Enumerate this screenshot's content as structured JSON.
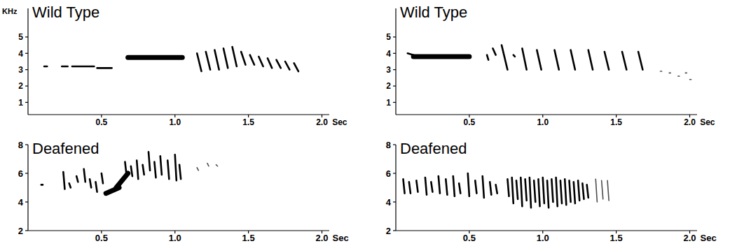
{
  "chart_data": [
    {
      "type": "spectrogram",
      "title": "Wild Type",
      "y_label": "KHz",
      "x_label": "Sec",
      "color": "#000000",
      "xlim": [
        0,
        2.05
      ],
      "ylim": [
        0.25,
        6.75
      ],
      "xticks": [
        0.5,
        {
          "value": 1,
          "label": "1.0"
        },
        1.5,
        {
          "value": 2,
          "label": "2.0"
        }
      ],
      "yticks": [
        1,
        2,
        3,
        4,
        5
      ],
      "notes": [
        {
          "x": [
            0.11,
            0.13
          ],
          "y": [
            3.2,
            3.2
          ]
        },
        {
          "x": [
            0.23,
            0.27
          ],
          "y": [
            3.2,
            3.2
          ]
        },
        {
          "x": [
            0.3,
            0.45
          ],
          "y": [
            3.2,
            3.2
          ]
        },
        {
          "x": [
            0.47,
            0.57
          ],
          "y": [
            3.1,
            3.1
          ]
        },
        {
          "x": [
            0.68,
            1.05
          ],
          "y": [
            3.75,
            3.75
          ],
          "line_style": "thick"
        },
        {
          "x": [
            1.15,
            1.18
          ],
          "y": [
            4.0,
            2.9
          ]
        },
        {
          "x": [
            1.21,
            1.24
          ],
          "y": [
            4.1,
            3.0
          ]
        },
        {
          "x": [
            1.27,
            1.3
          ],
          "y": [
            4.2,
            3.0
          ]
        },
        {
          "x": [
            1.33,
            1.36
          ],
          "y": [
            4.3,
            3.1
          ]
        },
        {
          "x": [
            1.39,
            1.42
          ],
          "y": [
            4.4,
            3.2
          ]
        },
        {
          "x": [
            1.45,
            1.48
          ],
          "y": [
            4.1,
            3.3
          ]
        },
        {
          "x": [
            1.51,
            1.54
          ],
          "y": [
            3.9,
            3.3
          ]
        },
        {
          "x": [
            1.57,
            1.6
          ],
          "y": [
            3.8,
            3.2
          ]
        },
        {
          "x": [
            1.63,
            1.66
          ],
          "y": [
            3.7,
            3.1
          ]
        },
        {
          "x": [
            1.69,
            1.72
          ],
          "y": [
            3.6,
            3.1
          ]
        },
        {
          "x": [
            1.75,
            1.78
          ],
          "y": [
            3.5,
            3.0
          ]
        },
        {
          "x": [
            1.81,
            1.84
          ],
          "y": [
            3.4,
            2.9
          ]
        }
      ]
    },
    {
      "type": "spectrogram",
      "title": "Wild Type",
      "x_label": "Sec",
      "color": "#000000",
      "xlim": [
        0,
        2.05
      ],
      "ylim": [
        0.25,
        6.75
      ],
      "xticks": [
        0.5,
        {
          "value": 1,
          "label": "1.0"
        },
        1.5,
        {
          "value": 2,
          "label": "2.0"
        }
      ],
      "yticks": [
        1,
        2,
        3,
        4,
        5
      ],
      "notes": [
        {
          "x": [
            0.08,
            0.12
          ],
          "y": [
            4.0,
            3.9
          ]
        },
        {
          "x": [
            0.12,
            0.5
          ],
          "y": [
            3.8,
            3.8
          ],
          "line_style": "thick"
        },
        {
          "x": [
            0.62,
            0.63
          ],
          "y": [
            3.9,
            3.6
          ]
        },
        {
          "x": [
            0.66,
            0.68
          ],
          "y": [
            4.3,
            3.9
          ]
        },
        {
          "x": [
            0.72,
            0.76
          ],
          "y": [
            4.5,
            3.0
          ]
        },
        {
          "x": [
            0.8,
            0.81
          ],
          "y": [
            3.9,
            3.8
          ]
        },
        {
          "x": [
            0.86,
            0.89
          ],
          "y": [
            4.3,
            3.0
          ]
        },
        {
          "x": [
            0.96,
            0.99
          ],
          "y": [
            4.2,
            3.0
          ]
        },
        {
          "x": [
            1.08,
            1.11
          ],
          "y": [
            4.2,
            3.0
          ]
        },
        {
          "x": [
            1.19,
            1.22
          ],
          "y": [
            4.2,
            3.0
          ]
        },
        {
          "x": [
            1.31,
            1.34
          ],
          "y": [
            4.2,
            3.0
          ]
        },
        {
          "x": [
            1.42,
            1.45
          ],
          "y": [
            4.1,
            3.0
          ]
        },
        {
          "x": [
            1.54,
            1.57
          ],
          "y": [
            4.1,
            3.0
          ]
        },
        {
          "x": [
            1.65,
            1.68
          ],
          "y": [
            4.1,
            3.0
          ]
        },
        {
          "x": [
            1.8,
            1.81
          ],
          "y": [
            2.9,
            2.9
          ],
          "line_style": "faint"
        },
        {
          "x": [
            1.86,
            1.87
          ],
          "y": [
            2.8,
            2.8
          ],
          "line_style": "faint"
        },
        {
          "x": [
            1.92,
            1.93
          ],
          "y": [
            2.6,
            2.6
          ],
          "line_style": "faint"
        },
        {
          "x": [
            1.97,
            1.98
          ],
          "y": [
            2.8,
            2.8
          ],
          "line_style": "faint"
        },
        {
          "x": [
            2.0,
            2.01
          ],
          "y": [
            2.4,
            2.4
          ],
          "line_style": "faint"
        }
      ]
    },
    {
      "type": "spectrogram",
      "title": "Deafened",
      "x_label": "Sec",
      "color": "#000000",
      "xlim": [
        0,
        2.05
      ],
      "ylim": [
        2,
        8
      ],
      "xticks": [
        0.5,
        {
          "value": 1,
          "label": "1.0"
        },
        1.5,
        {
          "value": 2,
          "label": "2.0"
        }
      ],
      "yticks": [
        2,
        4,
        6,
        8
      ],
      "notes": [
        {
          "x": [
            0.09,
            0.1
          ],
          "y": [
            5.2,
            5.2
          ]
        },
        {
          "x": [
            0.24,
            0.25
          ],
          "y": [
            6.1,
            4.9
          ]
        },
        {
          "x": [
            0.28,
            0.29
          ],
          "y": [
            5.3,
            5.0
          ]
        },
        {
          "x": [
            0.33,
            0.34
          ],
          "y": [
            5.8,
            5.4
          ]
        },
        {
          "x": [
            0.38,
            0.39
          ],
          "y": [
            6.3,
            5.4
          ]
        },
        {
          "x": [
            0.42,
            0.43
          ],
          "y": [
            5.6,
            5.0
          ]
        },
        {
          "x": [
            0.46,
            0.47
          ],
          "y": [
            5.4,
            4.7
          ]
        },
        {
          "x": [
            0.5,
            0.51
          ],
          "y": [
            6.0,
            5.3
          ]
        },
        {
          "x": [
            0.53,
            0.62
          ],
          "y": [
            4.6,
            5.0
          ],
          "line_style": "thick"
        },
        {
          "x": [
            0.6,
            0.68
          ],
          "y": [
            5.0,
            6.0
          ],
          "line_style": "thick"
        },
        {
          "x": [
            0.66,
            0.67
          ],
          "y": [
            6.8,
            5.9
          ]
        },
        {
          "x": [
            0.7,
            0.71
          ],
          "y": [
            6.5,
            5.8
          ]
        },
        {
          "x": [
            0.74,
            0.75
          ],
          "y": [
            6.9,
            5.6
          ]
        },
        {
          "x": [
            0.78,
            0.79
          ],
          "y": [
            6.6,
            5.9
          ]
        },
        {
          "x": [
            0.82,
            0.83
          ],
          "y": [
            7.5,
            6.2
          ]
        },
        {
          "x": [
            0.86,
            0.87
          ],
          "y": [
            6.8,
            5.7
          ]
        },
        {
          "x": [
            0.9,
            0.91
          ],
          "y": [
            7.2,
            5.9
          ]
        },
        {
          "x": [
            0.95,
            0.96
          ],
          "y": [
            6.9,
            5.6
          ]
        },
        {
          "x": [
            1.0,
            1.01
          ],
          "y": [
            7.3,
            5.5
          ]
        },
        {
          "x": [
            1.03,
            1.04
          ],
          "y": [
            6.6,
            5.6
          ]
        },
        {
          "x": [
            1.15,
            1.16
          ],
          "y": [
            6.4,
            6.2
          ],
          "line_style": "faint"
        },
        {
          "x": [
            1.22,
            1.23
          ],
          "y": [
            6.7,
            6.5
          ],
          "line_style": "faint"
        },
        {
          "x": [
            1.28,
            1.29
          ],
          "y": [
            6.6,
            6.5
          ],
          "line_style": "faint"
        }
      ]
    },
    {
      "type": "spectrogram",
      "title": "Deafened",
      "x_label": "Sec",
      "color": "#000000",
      "xlim": [
        0,
        2.05
      ],
      "ylim": [
        2,
        8
      ],
      "xticks": [
        0.5,
        {
          "value": 1,
          "label": "1.0"
        },
        1.5,
        {
          "value": 2,
          "label": "2.0"
        }
      ],
      "yticks": [
        2,
        4,
        6,
        8
      ],
      "notes": [
        {
          "x": [
            0.05,
            0.06
          ],
          "y": [
            5.6,
            4.6
          ]
        },
        {
          "x": [
            0.09,
            0.1
          ],
          "y": [
            5.4,
            4.6
          ]
        },
        {
          "x": [
            0.14,
            0.15
          ],
          "y": [
            5.5,
            4.7
          ]
        },
        {
          "x": [
            0.2,
            0.21
          ],
          "y": [
            5.7,
            4.5
          ]
        },
        {
          "x": [
            0.24,
            0.25
          ],
          "y": [
            5.4,
            4.7
          ]
        },
        {
          "x": [
            0.29,
            0.3
          ],
          "y": [
            5.8,
            4.6
          ]
        },
        {
          "x": [
            0.34,
            0.35
          ],
          "y": [
            5.6,
            4.5
          ]
        },
        {
          "x": [
            0.39,
            0.4
          ],
          "y": [
            5.8,
            4.4
          ]
        },
        {
          "x": [
            0.43,
            0.44
          ],
          "y": [
            5.3,
            4.6
          ]
        },
        {
          "x": [
            0.49,
            0.5
          ],
          "y": [
            6.0,
            4.4
          ]
        },
        {
          "x": [
            0.54,
            0.55
          ],
          "y": [
            5.5,
            4.6
          ]
        },
        {
          "x": [
            0.59,
            0.6
          ],
          "y": [
            5.8,
            4.3
          ]
        },
        {
          "x": [
            0.64,
            0.65
          ],
          "y": [
            5.4,
            4.5
          ]
        },
        {
          "x": [
            0.68,
            0.69
          ],
          "y": [
            5.2,
            4.6
          ]
        },
        {
          "x": [
            0.76,
            0.77
          ],
          "y": [
            5.6,
            4.4
          ]
        },
        {
          "x": [
            0.79,
            0.8
          ],
          "y": [
            5.7,
            3.9
          ]
        },
        {
          "x": [
            0.82,
            0.83
          ],
          "y": [
            5.5,
            4.2
          ]
        },
        {
          "x": [
            0.85,
            0.86
          ],
          "y": [
            5.7,
            3.7
          ]
        },
        {
          "x": [
            0.88,
            0.89
          ],
          "y": [
            5.6,
            4.1
          ]
        },
        {
          "x": [
            0.91,
            0.92
          ],
          "y": [
            5.7,
            3.6
          ]
        },
        {
          "x": [
            0.94,
            0.95
          ],
          "y": [
            5.5,
            4.0
          ]
        },
        {
          "x": [
            0.97,
            0.98
          ],
          "y": [
            5.6,
            3.7
          ]
        },
        {
          "x": [
            1.0,
            1.01
          ],
          "y": [
            5.7,
            3.9
          ]
        },
        {
          "x": [
            1.03,
            1.04
          ],
          "y": [
            5.5,
            3.6
          ]
        },
        {
          "x": [
            1.06,
            1.07
          ],
          "y": [
            5.6,
            4.0
          ]
        },
        {
          "x": [
            1.09,
            1.1
          ],
          "y": [
            5.7,
            3.7
          ]
        },
        {
          "x": [
            1.12,
            1.13
          ],
          "y": [
            5.5,
            3.9
          ]
        },
        {
          "x": [
            1.15,
            1.16
          ],
          "y": [
            5.6,
            3.8
          ]
        },
        {
          "x": [
            1.18,
            1.19
          ],
          "y": [
            5.5,
            4.0
          ]
        },
        {
          "x": [
            1.21,
            1.22
          ],
          "y": [
            5.4,
            3.9
          ]
        },
        {
          "x": [
            1.24,
            1.25
          ],
          "y": [
            5.5,
            4.1
          ]
        },
        {
          "x": [
            1.27,
            1.28
          ],
          "y": [
            5.3,
            4.2
          ]
        },
        {
          "x": [
            1.3,
            1.31
          ],
          "y": [
            5.2,
            4.3
          ]
        },
        {
          "x": [
            1.36,
            1.37
          ],
          "y": [
            5.6,
            4.0
          ],
          "line_style": "faint"
        },
        {
          "x": [
            1.4,
            1.41
          ],
          "y": [
            5.5,
            4.2
          ],
          "line_style": "faint"
        },
        {
          "x": [
            1.44,
            1.45
          ],
          "y": [
            5.5,
            4.1
          ],
          "line_style": "faint"
        }
      ]
    }
  ]
}
